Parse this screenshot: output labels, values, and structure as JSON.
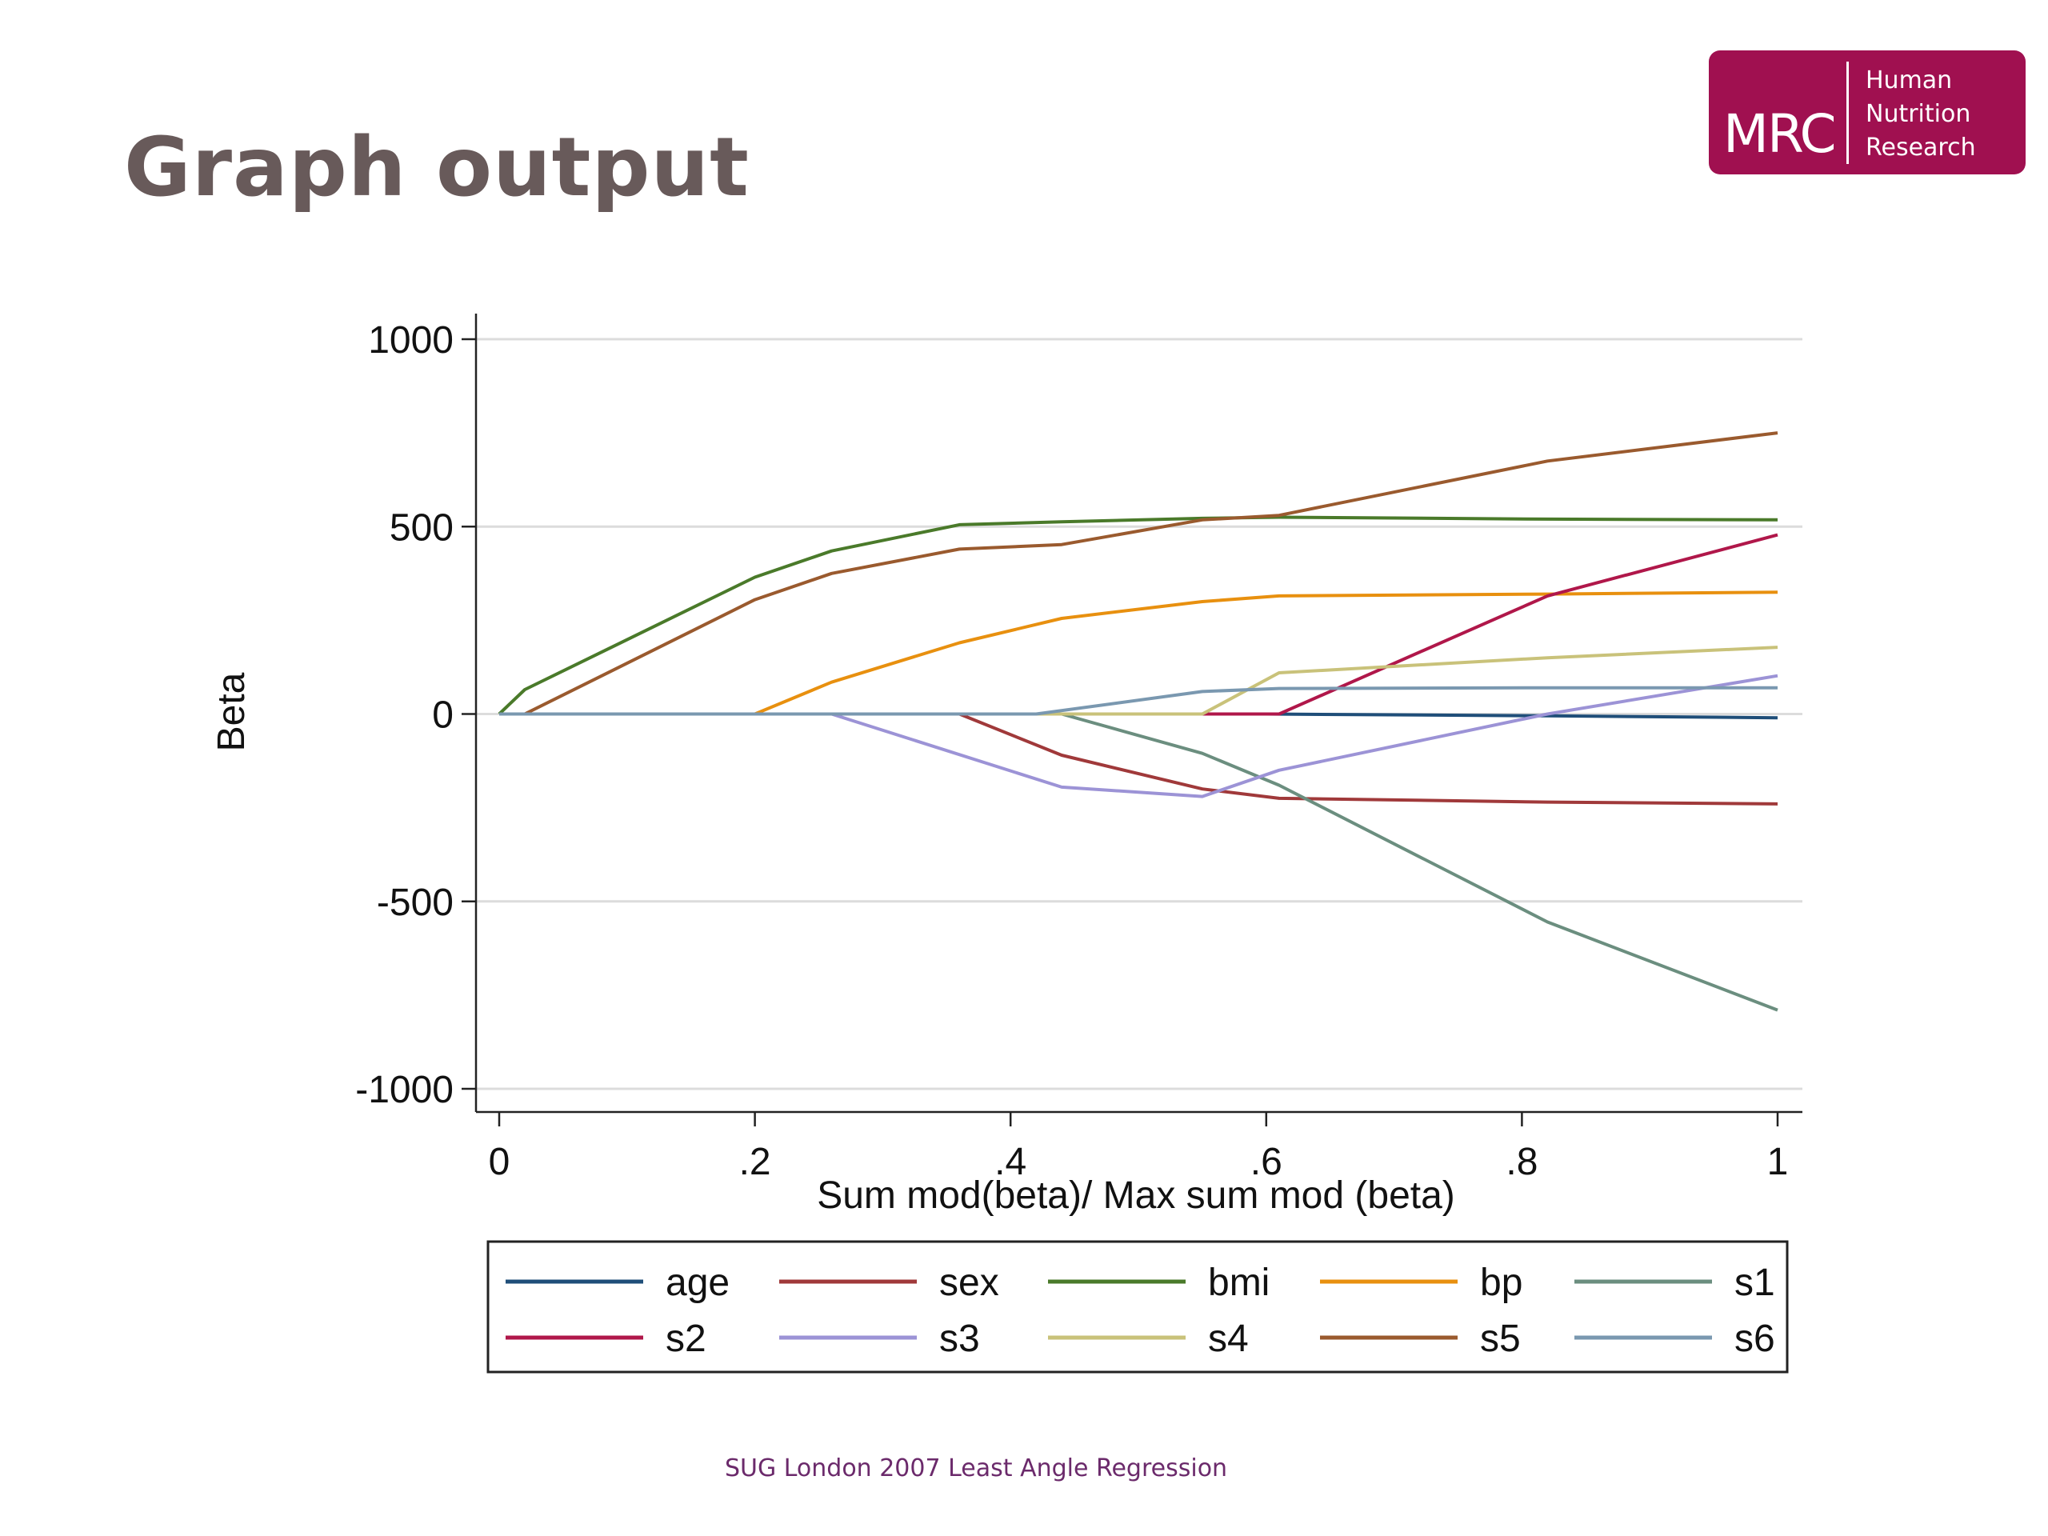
{
  "slide": {
    "title": "Graph output",
    "footer": "SUG London 2007 Least Angle Regression"
  },
  "logo": {
    "mark": "MRC",
    "lines": [
      "Human",
      "Nutrition",
      "Research"
    ],
    "color": "#a01050"
  },
  "chart_data": {
    "type": "line",
    "title": "",
    "xlabel": "Sum mod(beta)/ Max sum mod (beta)",
    "ylabel": "Beta",
    "xlim": [
      0,
      1
    ],
    "ylim": [
      -1000,
      1000
    ],
    "x_ticks": [
      0,
      0.2,
      0.4,
      0.6,
      0.8,
      1
    ],
    "x_tick_labels": [
      "0",
      ".2",
      ".4",
      ".6",
      ".8",
      "1"
    ],
    "y_ticks": [
      1000,
      500,
      0,
      -500,
      -1000
    ],
    "y_tick_labels": [
      "1000",
      "500",
      "0",
      "-500",
      "-1000"
    ],
    "grid": true,
    "legend_position": "bottom",
    "series": [
      {
        "name": "age",
        "color": "#1f4e79",
        "points": [
          [
            0,
            0
          ],
          [
            0.6,
            0
          ],
          [
            0.82,
            -5
          ],
          [
            1,
            -10
          ]
        ]
      },
      {
        "name": "sex",
        "color": "#a0393a",
        "points": [
          [
            0,
            0
          ],
          [
            0.36,
            0
          ],
          [
            0.44,
            -110
          ],
          [
            0.55,
            -200
          ],
          [
            0.61,
            -225
          ],
          [
            0.82,
            -235
          ],
          [
            1,
            -240
          ]
        ]
      },
      {
        "name": "bmi",
        "color": "#4a7a2a",
        "points": [
          [
            0,
            0
          ],
          [
            0.02,
            65
          ],
          [
            0.2,
            365
          ],
          [
            0.26,
            435
          ],
          [
            0.36,
            505
          ],
          [
            0.44,
            513
          ],
          [
            0.55,
            522
          ],
          [
            0.61,
            525
          ],
          [
            0.82,
            520
          ],
          [
            1,
            518
          ]
        ]
      },
      {
        "name": "bp",
        "color": "#e8900f",
        "points": [
          [
            0,
            0
          ],
          [
            0.2,
            0
          ],
          [
            0.26,
            85
          ],
          [
            0.36,
            190
          ],
          [
            0.44,
            255
          ],
          [
            0.55,
            300
          ],
          [
            0.61,
            315
          ],
          [
            0.82,
            320
          ],
          [
            1,
            325
          ]
        ]
      },
      {
        "name": "s1",
        "color": "#6b8e7f",
        "points": [
          [
            0,
            0
          ],
          [
            0.44,
            0
          ],
          [
            0.55,
            -105
          ],
          [
            0.61,
            -190
          ],
          [
            0.82,
            -555
          ],
          [
            1,
            -790
          ]
        ]
      },
      {
        "name": "s2",
        "color": "#b0174a",
        "points": [
          [
            0,
            0
          ],
          [
            0.61,
            0
          ],
          [
            0.82,
            315
          ],
          [
            1,
            478
          ]
        ]
      },
      {
        "name": "s3",
        "color": "#9c93d6",
        "points": [
          [
            0,
            0
          ],
          [
            0.26,
            0
          ],
          [
            0.44,
            -195
          ],
          [
            0.55,
            -220
          ],
          [
            0.61,
            -150
          ],
          [
            0.82,
            0
          ],
          [
            1,
            102
          ]
        ]
      },
      {
        "name": "s4",
        "color": "#c9c27a",
        "points": [
          [
            0,
            0
          ],
          [
            0.55,
            0
          ],
          [
            0.61,
            110
          ],
          [
            0.82,
            150
          ],
          [
            1,
            178
          ]
        ]
      },
      {
        "name": "s5",
        "color": "#9a5a2e",
        "points": [
          [
            0,
            0
          ],
          [
            0.02,
            0
          ],
          [
            0.2,
            305
          ],
          [
            0.26,
            375
          ],
          [
            0.36,
            440
          ],
          [
            0.44,
            452
          ],
          [
            0.55,
            518
          ],
          [
            0.61,
            530
          ],
          [
            0.82,
            675
          ],
          [
            1,
            750
          ]
        ]
      },
      {
        "name": "s6",
        "color": "#7a98b0",
        "points": [
          [
            0,
            0
          ],
          [
            0.42,
            0
          ],
          [
            0.55,
            60
          ],
          [
            0.61,
            68
          ],
          [
            0.82,
            70
          ],
          [
            1,
            70
          ]
        ]
      }
    ]
  }
}
